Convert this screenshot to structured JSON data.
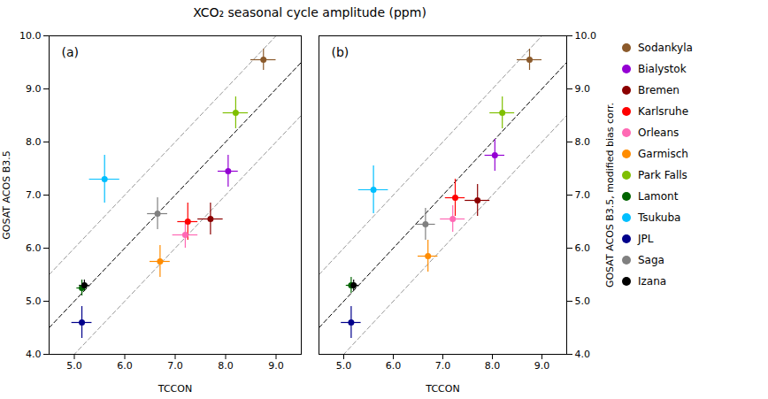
{
  "chart_data": [
    {
      "type": "scatter",
      "title": "XCO₂ seasonal cycle amplitude (ppm)",
      "annotations": [
        "(a)"
      ],
      "xlabel": "TCCON",
      "ylabel": "GOSAT ACOS B3.5",
      "xlim": [
        4.5,
        9.5
      ],
      "ylim": [
        4.0,
        10.0
      ],
      "xticks": [
        5,
        6,
        7,
        8,
        9
      ],
      "yticks": [
        4,
        5,
        6,
        7,
        8,
        9,
        10
      ],
      "grid": false,
      "reference_lines": [
        {
          "offset": 0,
          "color": "#000000",
          "line_style": "dashed"
        },
        {
          "offset": 1.0,
          "color": "#999999",
          "line_style": "dashed"
        },
        {
          "offset": -1.0,
          "color": "#999999",
          "line_style": "dashed"
        }
      ],
      "series": [
        {
          "name": "Sodankyla",
          "color": "#8B5A2B",
          "x": [
            8.75
          ],
          "values": [
            9.55
          ],
          "xerr": [
            0.25
          ],
          "yerr": [
            0.2
          ]
        },
        {
          "name": "Bialystok",
          "color": "#9400D3",
          "x": [
            8.05
          ],
          "values": [
            7.45
          ],
          "xerr": [
            0.2
          ],
          "yerr": [
            0.3
          ]
        },
        {
          "name": "Bremen",
          "color": "#8B0000",
          "x": [
            7.7
          ],
          "values": [
            6.55
          ],
          "xerr": [
            0.25
          ],
          "yerr": [
            0.3
          ]
        },
        {
          "name": "Karlsruhe",
          "color": "#FF0000",
          "x": [
            7.25
          ],
          "values": [
            6.5
          ],
          "xerr": [
            0.2
          ],
          "yerr": [
            0.35
          ]
        },
        {
          "name": "Orleans",
          "color": "#FF69B4",
          "x": [
            7.2
          ],
          "values": [
            6.25
          ],
          "xerr": [
            0.25
          ],
          "yerr": [
            0.25
          ]
        },
        {
          "name": "Garmisch",
          "color": "#FF8C00",
          "x": [
            6.7
          ],
          "values": [
            5.75
          ],
          "xerr": [
            0.2
          ],
          "yerr": [
            0.3
          ]
        },
        {
          "name": "Park Falls",
          "color": "#7FBF00",
          "x": [
            8.2
          ],
          "values": [
            8.55
          ],
          "xerr": [
            0.25
          ],
          "yerr": [
            0.3
          ]
        },
        {
          "name": "Lamont",
          "color": "#006400",
          "x": [
            5.15
          ],
          "values": [
            5.25
          ],
          "xerr": [
            0.1
          ],
          "yerr": [
            0.15
          ]
        },
        {
          "name": "Tsukuba",
          "color": "#00BFFF",
          "x": [
            5.6
          ],
          "values": [
            7.3
          ],
          "xerr": [
            0.3
          ],
          "yerr": [
            0.45
          ]
        },
        {
          "name": "JPL",
          "color": "#00008B",
          "x": [
            5.15
          ],
          "values": [
            4.6
          ],
          "xerr": [
            0.2
          ],
          "yerr": [
            0.3
          ]
        },
        {
          "name": "Saga",
          "color": "#808080",
          "x": [
            6.65
          ],
          "values": [
            6.65
          ],
          "xerr": [
            0.2
          ],
          "yerr": [
            0.3
          ]
        },
        {
          "name": "Izana",
          "color": "#000000",
          "x": [
            5.2
          ],
          "values": [
            5.3
          ],
          "xerr": [
            0.1
          ],
          "yerr": [
            0.1
          ]
        }
      ]
    },
    {
      "type": "scatter",
      "annotations": [
        "(b)"
      ],
      "xlabel": "TCCON",
      "ylabel": "GOSAT ACOS B3.5, modified bias corr.",
      "xlim": [
        4.5,
        9.5
      ],
      "ylim": [
        4.0,
        10.0
      ],
      "xticks": [
        5,
        6,
        7,
        8,
        9
      ],
      "yticks": [
        4,
        5,
        6,
        7,
        8,
        9,
        10
      ],
      "grid": false,
      "legend": "right",
      "reference_lines": [
        {
          "offset": 0,
          "color": "#000000",
          "line_style": "dashed"
        },
        {
          "offset": 1.0,
          "color": "#999999",
          "line_style": "dashed"
        },
        {
          "offset": -1.0,
          "color": "#999999",
          "line_style": "dashed"
        }
      ],
      "series": [
        {
          "name": "Sodankyla",
          "color": "#8B5A2B",
          "x": [
            8.75
          ],
          "values": [
            9.55
          ],
          "xerr": [
            0.25
          ],
          "yerr": [
            0.2
          ]
        },
        {
          "name": "Bialystok",
          "color": "#9400D3",
          "x": [
            8.05
          ],
          "values": [
            7.75
          ],
          "xerr": [
            0.2
          ],
          "yerr": [
            0.3
          ]
        },
        {
          "name": "Bremen",
          "color": "#8B0000",
          "x": [
            7.7
          ],
          "values": [
            6.9
          ],
          "xerr": [
            0.25
          ],
          "yerr": [
            0.3
          ]
        },
        {
          "name": "Karlsruhe",
          "color": "#FF0000",
          "x": [
            7.25
          ],
          "values": [
            6.95
          ],
          "xerr": [
            0.2
          ],
          "yerr": [
            0.35
          ]
        },
        {
          "name": "Orleans",
          "color": "#FF69B4",
          "x": [
            7.2
          ],
          "values": [
            6.55
          ],
          "xerr": [
            0.25
          ],
          "yerr": [
            0.25
          ]
        },
        {
          "name": "Garmisch",
          "color": "#FF8C00",
          "x": [
            6.7
          ],
          "values": [
            5.85
          ],
          "xerr": [
            0.2
          ],
          "yerr": [
            0.3
          ]
        },
        {
          "name": "Park Falls",
          "color": "#7FBF00",
          "x": [
            8.2
          ],
          "values": [
            8.55
          ],
          "xerr": [
            0.25
          ],
          "yerr": [
            0.3
          ]
        },
        {
          "name": "Lamont",
          "color": "#006400",
          "x": [
            5.15
          ],
          "values": [
            5.3
          ],
          "xerr": [
            0.1
          ],
          "yerr": [
            0.15
          ]
        },
        {
          "name": "Tsukuba",
          "color": "#00BFFF",
          "x": [
            5.6
          ],
          "values": [
            7.1
          ],
          "xerr": [
            0.3
          ],
          "yerr": [
            0.45
          ]
        },
        {
          "name": "JPL",
          "color": "#00008B",
          "x": [
            5.15
          ],
          "values": [
            4.6
          ],
          "xerr": [
            0.2
          ],
          "yerr": [
            0.3
          ]
        },
        {
          "name": "Saga",
          "color": "#808080",
          "x": [
            6.65
          ],
          "values": [
            6.45
          ],
          "xerr": [
            0.2
          ],
          "yerr": [
            0.3
          ]
        },
        {
          "name": "Izana",
          "color": "#000000",
          "x": [
            5.2
          ],
          "values": [
            5.3
          ],
          "xerr": [
            0.1
          ],
          "yerr": [
            0.1
          ]
        }
      ]
    }
  ]
}
